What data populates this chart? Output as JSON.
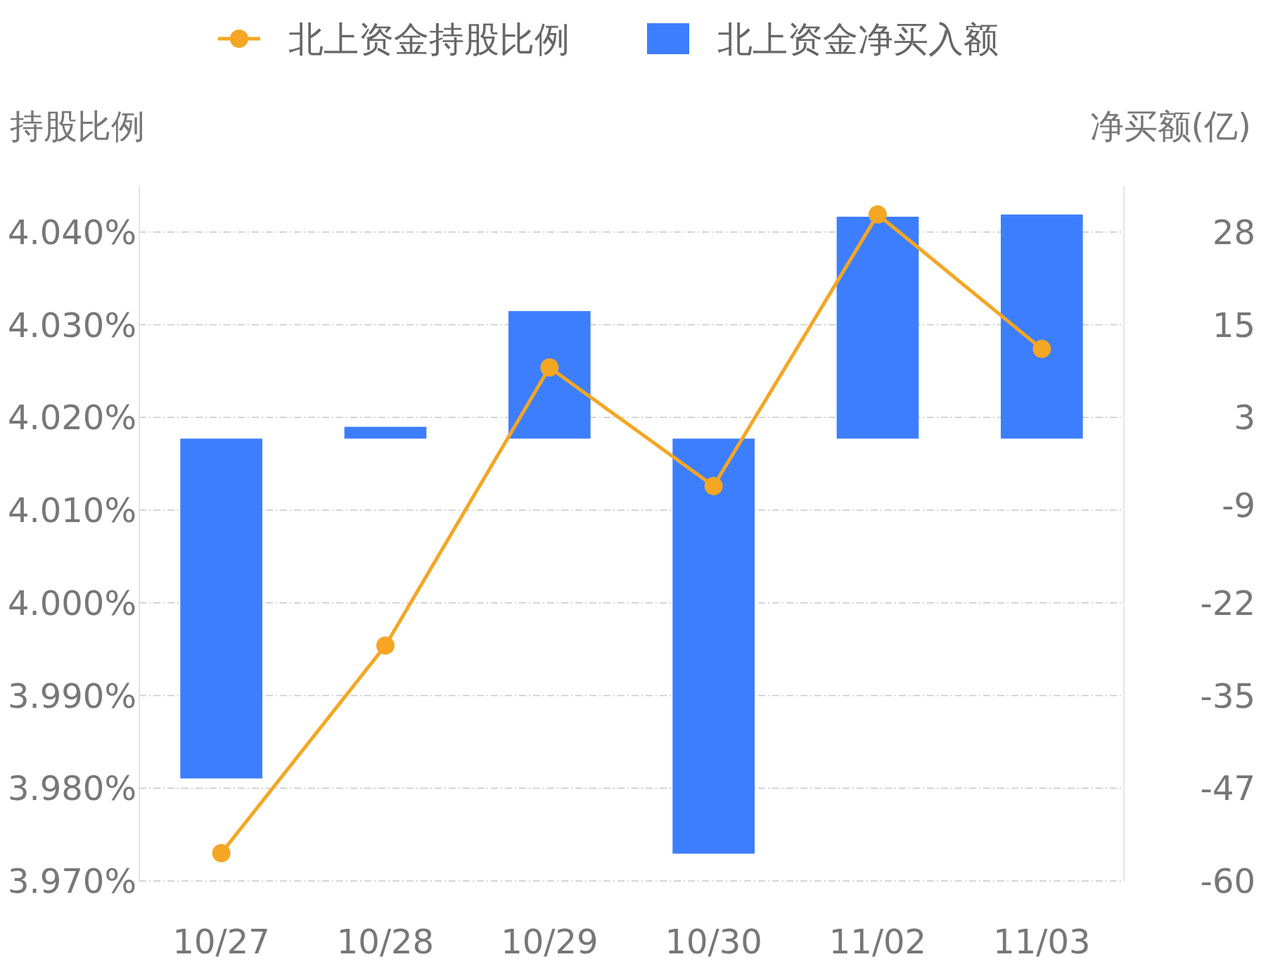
{
  "chart_data": {
    "type": "bar",
    "categories": [
      "10/27",
      "10/28",
      "10/29",
      "10/30",
      "11/02",
      "11/03"
    ],
    "series": [
      {
        "name": "北上资金持股比例",
        "type": "line",
        "color": "#f5a623",
        "marker": "circle",
        "values": [
          3.973,
          3.9954,
          4.0254,
          4.0126,
          4.0419,
          4.0274
        ]
      },
      {
        "name": "北上资金净买入额",
        "axis": "y2",
        "color": "#3d7eff",
        "values": [
          -46.1,
          1.6,
          17.3,
          -56.3,
          30.1,
          30.4
        ]
      }
    ],
    "ylabel": "持股比例",
    "y2label": "净买额(亿)",
    "ylim": [
      3.97,
      4.045
    ],
    "yticks": [
      {
        "value": 3.97,
        "label": "3.970%"
      },
      {
        "value": 3.98,
        "label": "3.980%"
      },
      {
        "value": 3.99,
        "label": "3.990%"
      },
      {
        "value": 4.0,
        "label": "4.000%"
      },
      {
        "value": 4.01,
        "label": "4.010%"
      },
      {
        "value": 4.02,
        "label": "4.020%"
      },
      {
        "value": 4.03,
        "label": "4.030%"
      },
      {
        "value": 4.04,
        "label": "4.040%"
      }
    ],
    "y2lim": [
      -60,
      34.3
    ],
    "y2ticks": [
      -60,
      {
        "value": -47.43,
        "label": "-47"
      },
      {
        "value": -34.86,
        "label": "-35"
      },
      {
        "value": -22.29,
        "label": "-22"
      },
      -9,
      {
        "value": 2.86,
        "label": "3"
      },
      {
        "value": 15.43,
        "label": "15"
      },
      28
    ],
    "grid": "y",
    "legend": "top"
  }
}
